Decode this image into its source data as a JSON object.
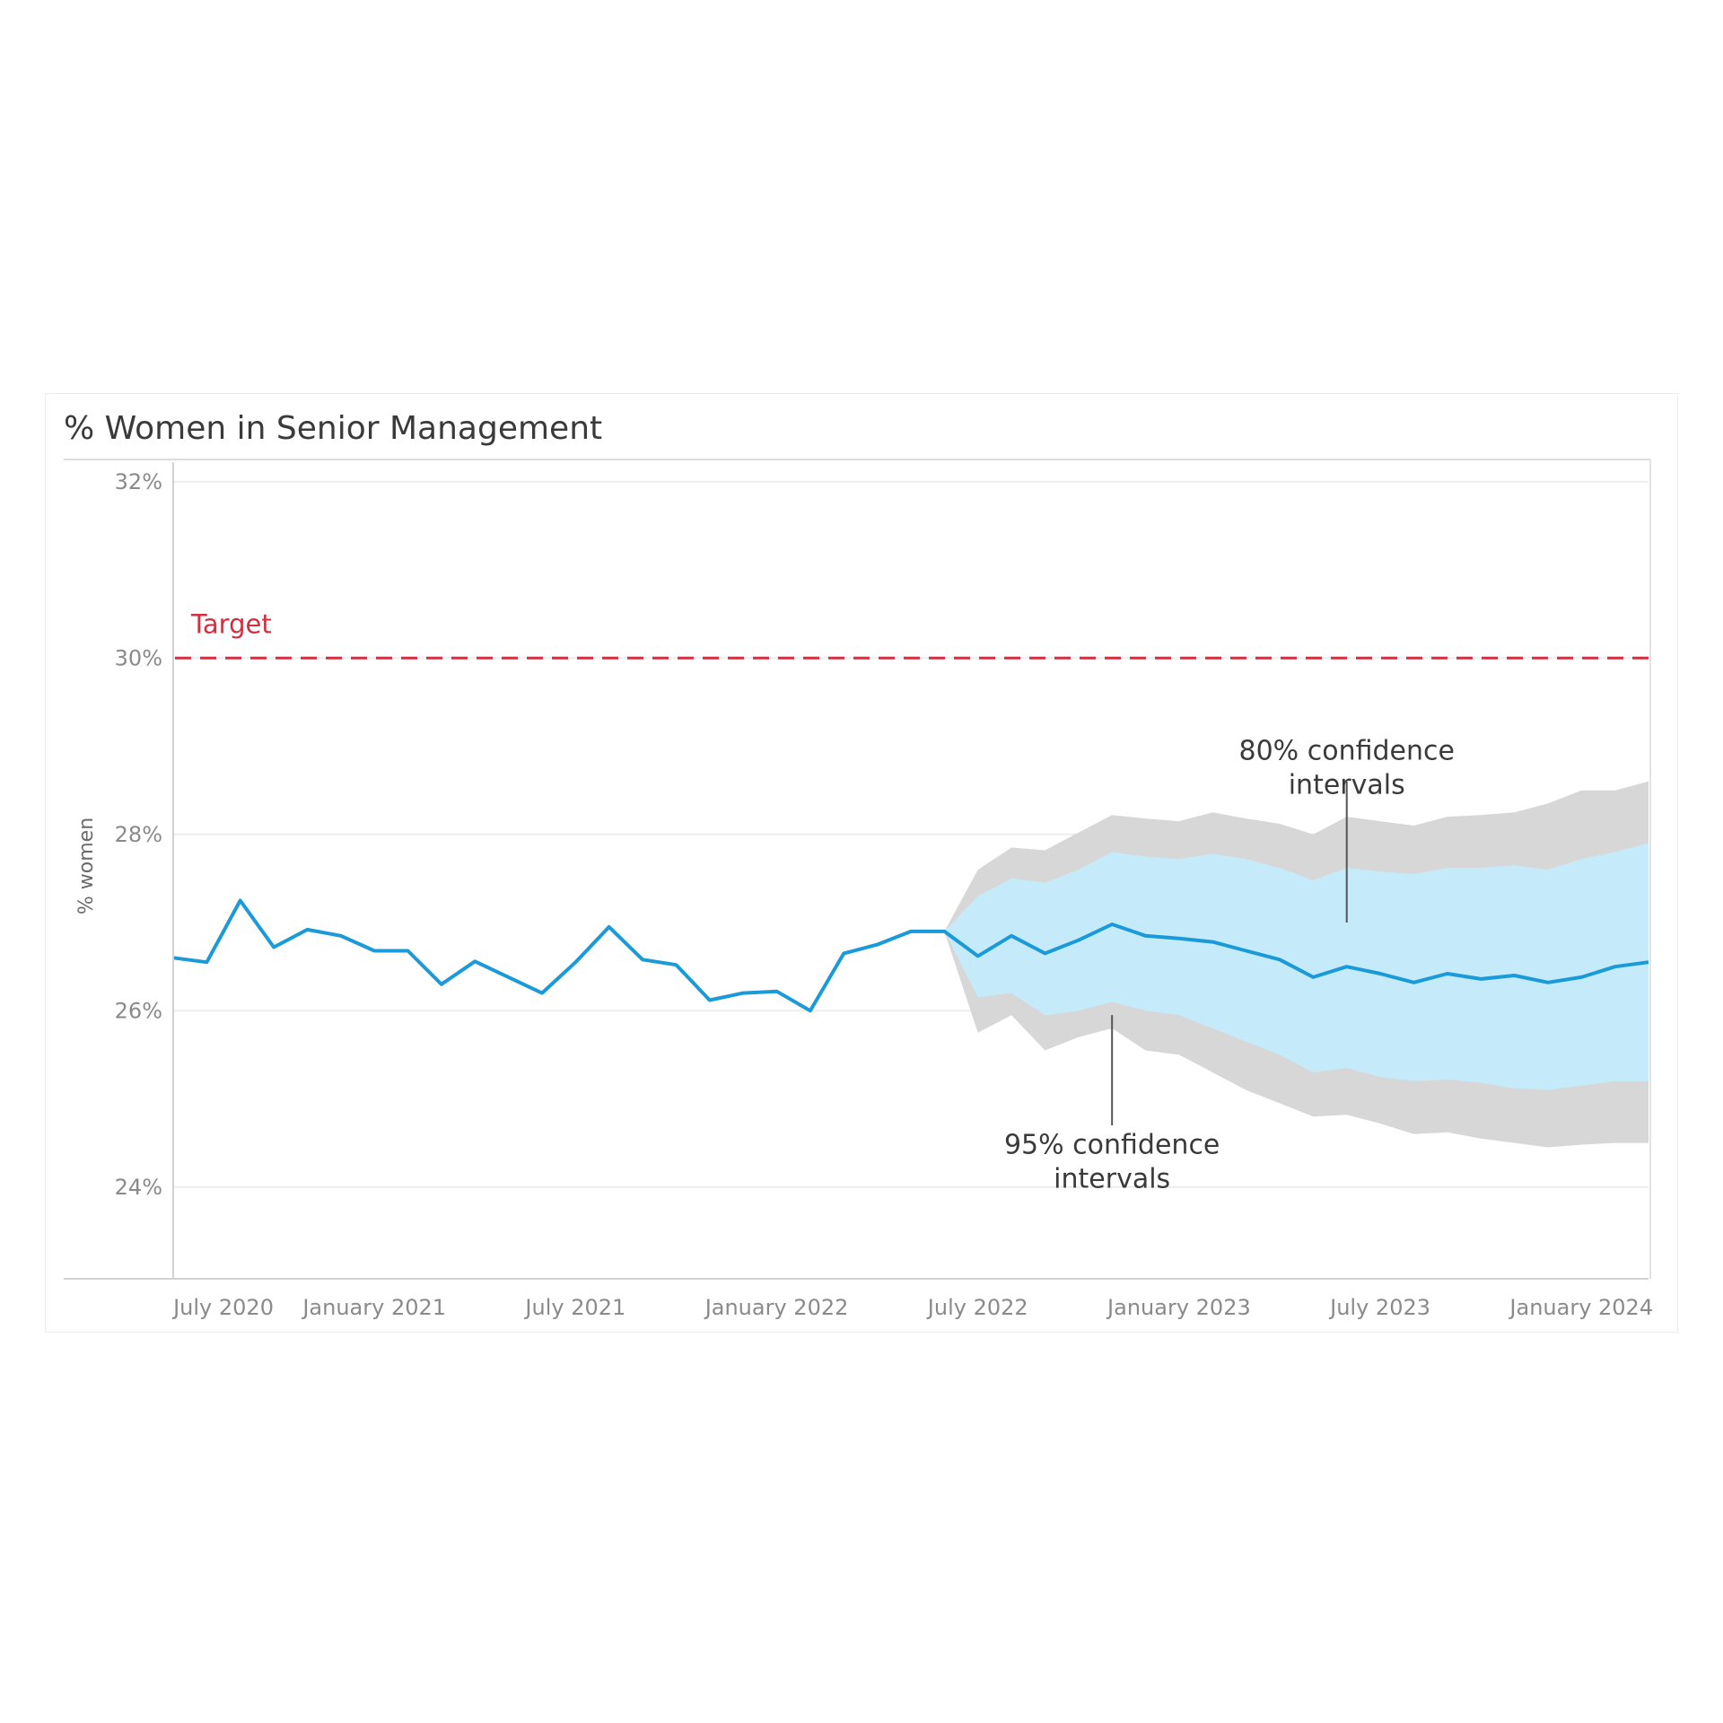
{
  "chart_data": {
    "type": "line",
    "title": "% Women in Senior Management",
    "xlabel": "",
    "ylabel": "% women",
    "ylim": [
      23,
      32.1
    ],
    "y_ticks": [
      {
        "value": 32,
        "label": "32%"
      },
      {
        "value": 30,
        "label": "30%"
      },
      {
        "value": 28,
        "label": "28%"
      },
      {
        "value": 26,
        "label": "26%"
      },
      {
        "value": 24,
        "label": "24%"
      }
    ],
    "x_ticks": [
      {
        "index": 1.5,
        "label": "July 2020"
      },
      {
        "index": 6,
        "label": "January 2021"
      },
      {
        "index": 12,
        "label": "July 2021"
      },
      {
        "index": 18,
        "label": "January 2022"
      },
      {
        "index": 24,
        "label": "July 2022"
      },
      {
        "index": 30,
        "label": "January 2023"
      },
      {
        "index": 36,
        "label": "July 2023"
      },
      {
        "index": 42,
        "label": "January 2024"
      }
    ],
    "x_range": [
      0,
      44
    ],
    "target": {
      "value": 30,
      "label": "Target",
      "color": "#d03040"
    },
    "series": [
      {
        "name": "% women",
        "color": "#1a9ad9",
        "x": [
          0,
          1,
          2,
          3,
          4,
          5,
          6,
          7,
          8,
          9,
          10,
          11,
          12,
          13,
          14,
          15,
          16,
          17,
          18,
          19,
          20,
          21,
          22,
          23,
          24,
          25,
          26,
          27,
          28,
          29,
          30,
          31,
          32,
          33,
          34,
          35,
          36,
          37,
          38,
          39,
          40,
          41,
          42,
          43,
          44
        ],
        "values": [
          26.6,
          26.55,
          27.25,
          26.72,
          26.92,
          26.85,
          26.68,
          26.68,
          26.3,
          26.56,
          26.38,
          26.2,
          26.55,
          26.95,
          26.58,
          26.52,
          26.12,
          26.2,
          26.22,
          26.0,
          26.65,
          26.75,
          26.9,
          26.9,
          26.62,
          26.85,
          26.65,
          26.8,
          26.98,
          26.85,
          26.82,
          26.78,
          26.68,
          26.58,
          26.38,
          26.5,
          26.42,
          26.32,
          26.42,
          26.36,
          26.4,
          26.32,
          26.38,
          26.5,
          26.55
        ]
      }
    ],
    "forecast_x": [
      23,
      24,
      25,
      26,
      27,
      28,
      29,
      30,
      31,
      32,
      33,
      34,
      35,
      36,
      37,
      38,
      39,
      40,
      41,
      42,
      43,
      44
    ],
    "ci80": {
      "label": "80% confidence intervals",
      "color": "#c5ebfb",
      "upper": [
        26.9,
        27.3,
        27.5,
        27.45,
        27.6,
        27.8,
        27.75,
        27.72,
        27.78,
        27.72,
        27.62,
        27.48,
        27.62,
        27.58,
        27.55,
        27.62,
        27.62,
        27.65,
        27.6,
        27.72,
        27.8,
        27.9
      ],
      "lower": [
        26.9,
        26.15,
        26.2,
        25.95,
        26.0,
        26.1,
        26.0,
        25.95,
        25.8,
        25.65,
        25.5,
        25.3,
        25.35,
        25.25,
        25.2,
        25.22,
        25.18,
        25.12,
        25.1,
        25.15,
        25.2,
        25.2
      ]
    },
    "ci95": {
      "label": "95% confidence intervals",
      "color": "#d7d7d7",
      "upper": [
        26.9,
        27.6,
        27.85,
        27.82,
        28.02,
        28.22,
        28.18,
        28.15,
        28.25,
        28.18,
        28.12,
        28.0,
        28.2,
        28.15,
        28.1,
        28.2,
        28.22,
        28.25,
        28.35,
        28.5,
        28.5,
        28.6
      ],
      "lower": [
        26.9,
        25.75,
        25.95,
        25.55,
        25.7,
        25.8,
        25.55,
        25.5,
        25.3,
        25.1,
        24.95,
        24.8,
        24.82,
        24.72,
        24.6,
        24.62,
        24.55,
        24.5,
        24.45,
        24.48,
        24.5,
        24.5
      ]
    },
    "annotations": [
      {
        "line1": "80% confidence",
        "line2": "intervals",
        "x_index": 35,
        "text_y": 28.85,
        "pointer_from": 28.6,
        "pointer_to": 27.0
      },
      {
        "line1": "95% confidence",
        "line2": "intervals",
        "x_index": 28,
        "text_y": 24.38,
        "pointer_from": 24.7,
        "pointer_to": 25.95
      }
    ]
  }
}
